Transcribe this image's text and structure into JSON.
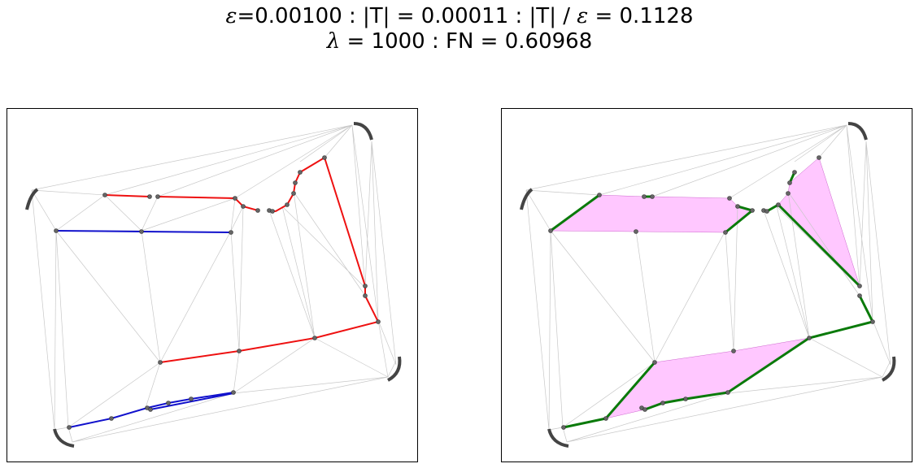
{
  "header": {
    "epsilon_value": "=0.00100 : |T| = 0.00011 : |T| / ",
    "ratio_value": " = 0.1128",
    "lambda_value": " = 1000 : FN = 0.60968",
    "epsilon_symbol": "ε",
    "lambda_symbol": "λ"
  },
  "colors": {
    "red_path": "#ee1111",
    "blue_path": "#1111cc",
    "green_path": "#0a7a0a",
    "magenta_fill": "#ff99ff",
    "edge_gray": "#c8c8c8",
    "node_gray": "#555555"
  }
}
